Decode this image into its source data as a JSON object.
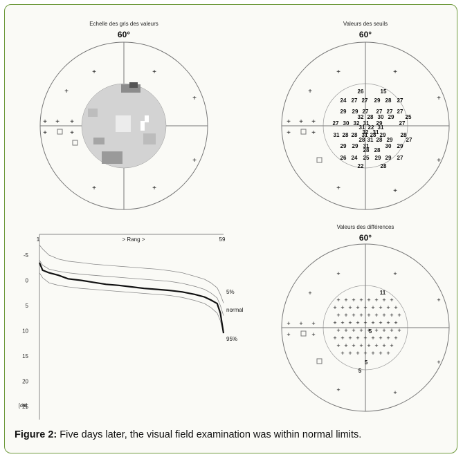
{
  "panels": {
    "grayscale": {
      "title": "Echelle des gris des valeurs",
      "angle": "60°"
    },
    "thresholds": {
      "title": "Valeurs des seuils",
      "angle": "60°",
      "values": [
        "26",
        "15",
        "24",
        "27",
        "27",
        "29",
        "28",
        "27",
        "29",
        "29",
        "27",
        "27",
        "27",
        "27",
        "32",
        "28",
        "30",
        "29",
        "25",
        "27",
        "30",
        "32",
        "31",
        "29",
        "27",
        "31",
        "22",
        "31",
        "31",
        "28",
        "28",
        "31",
        "28",
        "29",
        "28",
        "32",
        "31",
        "28",
        "31",
        "28",
        "29",
        "27",
        "29",
        "29",
        "31",
        "30",
        "29",
        "28",
        "28",
        "26",
        "24",
        "25",
        "29",
        "29",
        "27",
        "22",
        "28"
      ]
    },
    "differences": {
      "title": "Valeurs des différences",
      "angle": "60°",
      "values": [
        "11",
        "5",
        "5",
        "5"
      ]
    }
  },
  "chart_data": {
    "type": "line",
    "top_label": "> Rang >",
    "x_start_label": "1",
    "x_end_label": "59",
    "yticks": [
      "-5",
      "0",
      "5",
      "10",
      "15",
      "20",
      "25"
    ],
    "y_unit_label": "[dB]",
    "ylim": [
      -5,
      25
    ],
    "x": [
      1,
      2,
      4,
      7,
      10,
      14,
      18,
      22,
      26,
      30,
      34,
      38,
      42,
      46,
      50,
      53,
      55,
      57,
      58,
      59
    ],
    "series": [
      {
        "name": "5%",
        "values": [
          -7.0,
          -6.2,
          -5.0,
          -4.2,
          -3.8,
          -3.5,
          -3.2,
          -3.0,
          -2.8,
          -2.6,
          -2.4,
          -2.2,
          -1.9,
          -1.5,
          -0.8,
          -0.2,
          0.5,
          1.5,
          2.8,
          4.5
        ]
      },
      {
        "name": "normal",
        "values": [
          -4.0,
          -3.0,
          -2.2,
          -1.8,
          -1.5,
          -1.2,
          -1.0,
          -0.8,
          -0.6,
          -0.4,
          -0.2,
          0.0,
          0.2,
          0.6,
          1.2,
          1.8,
          2.5,
          3.5,
          5.0,
          7.0
        ]
      },
      {
        "name": "95%",
        "values": [
          -1.5,
          -0.5,
          0.5,
          1.0,
          1.3,
          1.6,
          1.8,
          2.0,
          2.2,
          2.4,
          2.6,
          2.8,
          3.0,
          3.4,
          4.0,
          4.6,
          5.4,
          6.5,
          8.0,
          10.5
        ]
      },
      {
        "name": "",
        "values": [
          -3.5,
          -2.0,
          -1.5,
          -1.0,
          -0.3,
          0.0,
          0.4,
          0.8,
          1.0,
          1.3,
          1.6,
          1.8,
          2.0,
          2.3,
          2.8,
          3.3,
          3.9,
          4.6,
          6.5,
          10.5
        ]
      }
    ]
  },
  "caption": {
    "label": "Figure 2:",
    "text": " Five days later, the visual field examination was within normal limits."
  }
}
